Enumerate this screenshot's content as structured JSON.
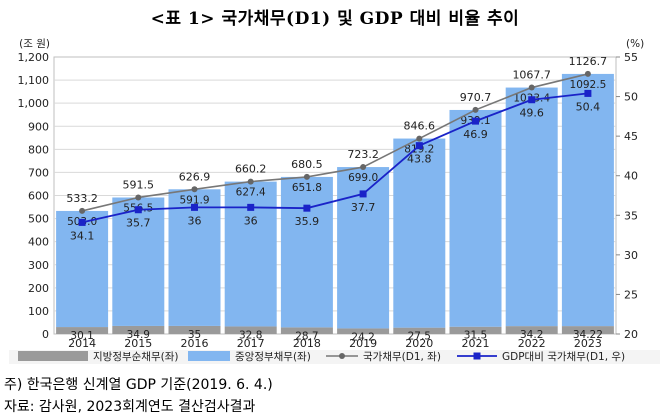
{
  "title": "<표 1> 국가채무(D1) 및 GDP 대비 비율 추이",
  "notes": {
    "note1": "주) 한국은행 신계열 GDP 기준(2019. 6. 4.)",
    "note2": "자료: 감사원, 2023회계연도 결산검사결과"
  },
  "chart_data": {
    "type": "bar",
    "stacked": true,
    "categories": [
      "2014",
      "2015",
      "2016",
      "2017",
      "2018",
      "2019",
      "2020",
      "2021",
      "2022",
      "2023"
    ],
    "left_axis": {
      "unit_label": "(조 원)",
      "min": 0,
      "max": 1200,
      "step": 100
    },
    "right_axis": {
      "unit_label": "(%)",
      "min": 20,
      "max": 55,
      "step": 5
    },
    "series": [
      {
        "name": "지방정부순채무(좌)",
        "kind": "bar",
        "axis": "left",
        "color": "#9a9a9a",
        "values": [
          30.1,
          34.9,
          35,
          32.8,
          28.7,
          24.2,
          27.5,
          31.5,
          34.2,
          34.22
        ],
        "labels": [
          "30.1",
          "34.9",
          "35",
          "32.8",
          "28.7",
          "24.2",
          "27.5",
          "31.5",
          "34.2",
          "34.22"
        ]
      },
      {
        "name": "중앙정부채무(좌)",
        "kind": "bar",
        "axis": "left",
        "color": "#82b6f0",
        "values": [
          503.0,
          556.5,
          591.9,
          627.4,
          651.8,
          699.0,
          819.2,
          939.1,
          1033.4,
          1092.5
        ],
        "labels": [
          "503.0",
          "556.5",
          "591.9",
          "627.4",
          "651.8",
          "699.0",
          "819.2",
          "939.1",
          "1033.4",
          "1092.5"
        ]
      },
      {
        "name": "국가채무(D1, 좌)",
        "kind": "line",
        "axis": "left",
        "color": "#777777",
        "values": [
          533.2,
          591.5,
          626.9,
          660.2,
          680.5,
          723.2,
          846.6,
          970.7,
          1067.7,
          1126.7
        ],
        "labels": [
          "533.2",
          "591.5",
          "626.9",
          "660.2",
          "680.5",
          "723.2",
          "846.6",
          "970.7",
          "1067.7",
          "1126.7"
        ]
      },
      {
        "name": "GDP대비 국가채무(D1, 우)",
        "kind": "line",
        "axis": "right",
        "color": "#1a23c8",
        "values": [
          34.1,
          35.7,
          36,
          36,
          35.9,
          37.7,
          43.8,
          46.9,
          49.6,
          50.4
        ],
        "labels": [
          "34.1",
          "35.7",
          "36",
          "36",
          "35.9",
          "37.7",
          "43.8",
          "46.9",
          "49.6",
          "50.4"
        ]
      }
    ],
    "grid": true,
    "legend": "bottom"
  }
}
